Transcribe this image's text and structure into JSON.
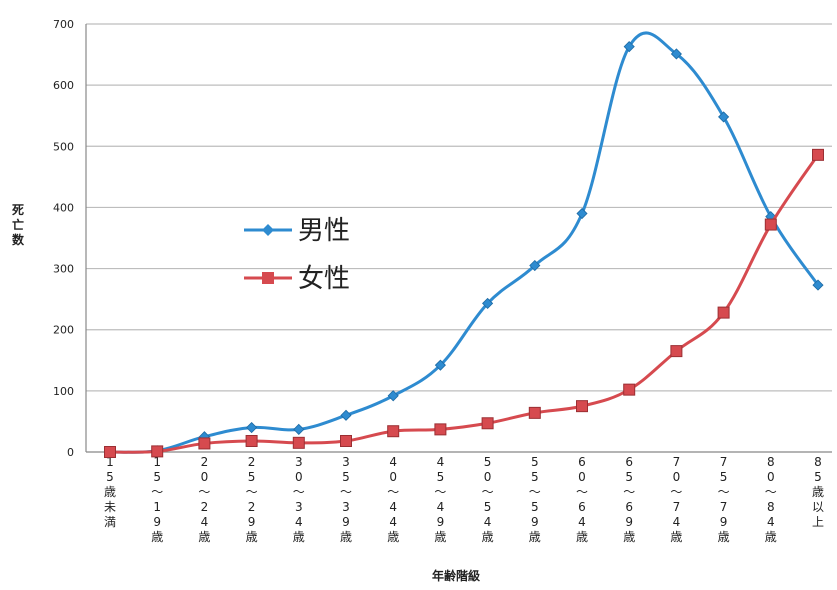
{
  "chart_data": {
    "type": "line",
    "title": "",
    "xlabel": "年齢階級",
    "ylabel": "死亡数",
    "ylim": [
      0,
      700
    ],
    "yticks": [
      0,
      100,
      200,
      300,
      400,
      500,
      600,
      700
    ],
    "grid": true,
    "legend_position": "center-left",
    "categories": [
      "15歳未満",
      "15〜19歳",
      "20〜24歳",
      "25〜29歳",
      "30〜34歳",
      "35〜39歳",
      "40〜44歳",
      "45〜49歳",
      "50〜54歳",
      "55〜59歳",
      "60〜64歳",
      "65〜69歳",
      "70〜74歳",
      "75〜79歳",
      "80〜84歳",
      "85歳以上"
    ],
    "series": [
      {
        "name": "男性",
        "color": "#2e8bd0",
        "marker": "diamond",
        "values": [
          0,
          2,
          25,
          40,
          37,
          60,
          92,
          142,
          243,
          305,
          390,
          663,
          651,
          548,
          385,
          273
        ]
      },
      {
        "name": "女性",
        "color": "#d64a4f",
        "marker": "square",
        "values": [
          0,
          1,
          14,
          18,
          15,
          18,
          34,
          37,
          47,
          64,
          75,
          102,
          165,
          228,
          372,
          486
        ]
      }
    ]
  }
}
